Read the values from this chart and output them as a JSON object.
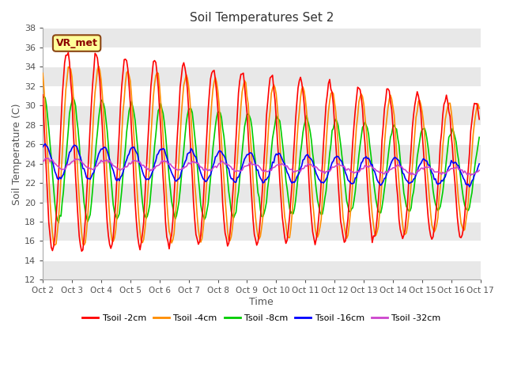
{
  "title": "Soil Temperatures Set 2",
  "xlabel": "Time",
  "ylabel": "Soil Temperature (C)",
  "xlim": [
    0,
    15
  ],
  "ylim": [
    12,
    38
  ],
  "yticks": [
    12,
    14,
    16,
    18,
    20,
    22,
    24,
    26,
    28,
    30,
    32,
    34,
    36,
    38
  ],
  "xtick_labels": [
    "Oct 2",
    "Oct 3",
    "Oct 4",
    "Oct 5",
    "Oct 6",
    "Oct 7",
    "Oct 8",
    "Oct 9",
    "Oct 10",
    "Oct 11",
    "Oct 12",
    "Oct 13",
    "Oct 14",
    "Oct 15",
    "Oct 16",
    "Oct 17"
  ],
  "plot_bg_color": "#ffffff",
  "fig_bg_color": "#ffffff",
  "grid_color_light": "#e0e0e0",
  "grid_color_dark": "#cccccc",
  "annotation_text": "VR_met",
  "annotation_bg": "#ffff99",
  "annotation_border": "#8B4513",
  "legend_labels": [
    "Tsoil -2cm",
    "Tsoil -4cm",
    "Tsoil -8cm",
    "Tsoil -16cm",
    "Tsoil -32cm"
  ],
  "line_colors": [
    "#ff0000",
    "#ff8c00",
    "#00cc00",
    "#0000ff",
    "#cc44cc"
  ],
  "line_width": 1.2
}
